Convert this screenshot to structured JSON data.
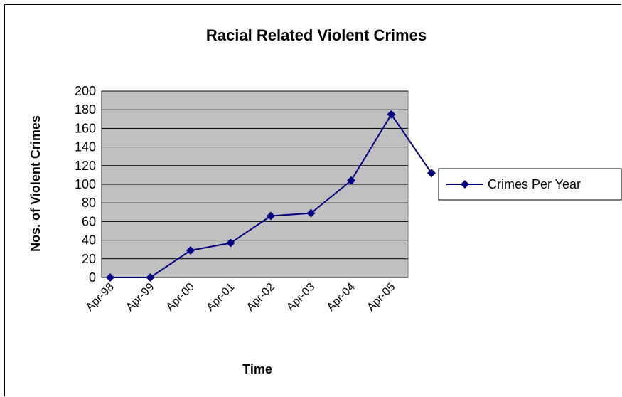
{
  "chart_data": {
    "type": "line",
    "title": "Racial Related Violent Crimes",
    "xlabel": "Time",
    "ylabel": "Nos. of Violent Crimes",
    "categories": [
      "Apr-98",
      "Apr-99",
      "Apr-00",
      "Apr-01",
      "Apr-02",
      "Apr-03",
      "Apr-04",
      "Apr-05",
      ""
    ],
    "series": [
      {
        "name": "Crimes Per Year",
        "values": [
          0,
          0,
          29,
          37,
          66,
          69,
          104,
          175,
          112
        ]
      }
    ],
    "ylim": [
      0,
      200
    ],
    "yticks": [
      0,
      20,
      40,
      60,
      80,
      100,
      120,
      140,
      160,
      180,
      200
    ],
    "grid": true,
    "legend_position": "right",
    "colors": {
      "plot_background": "#c0c0c0",
      "series": "#000080",
      "grid": "#000000"
    }
  }
}
